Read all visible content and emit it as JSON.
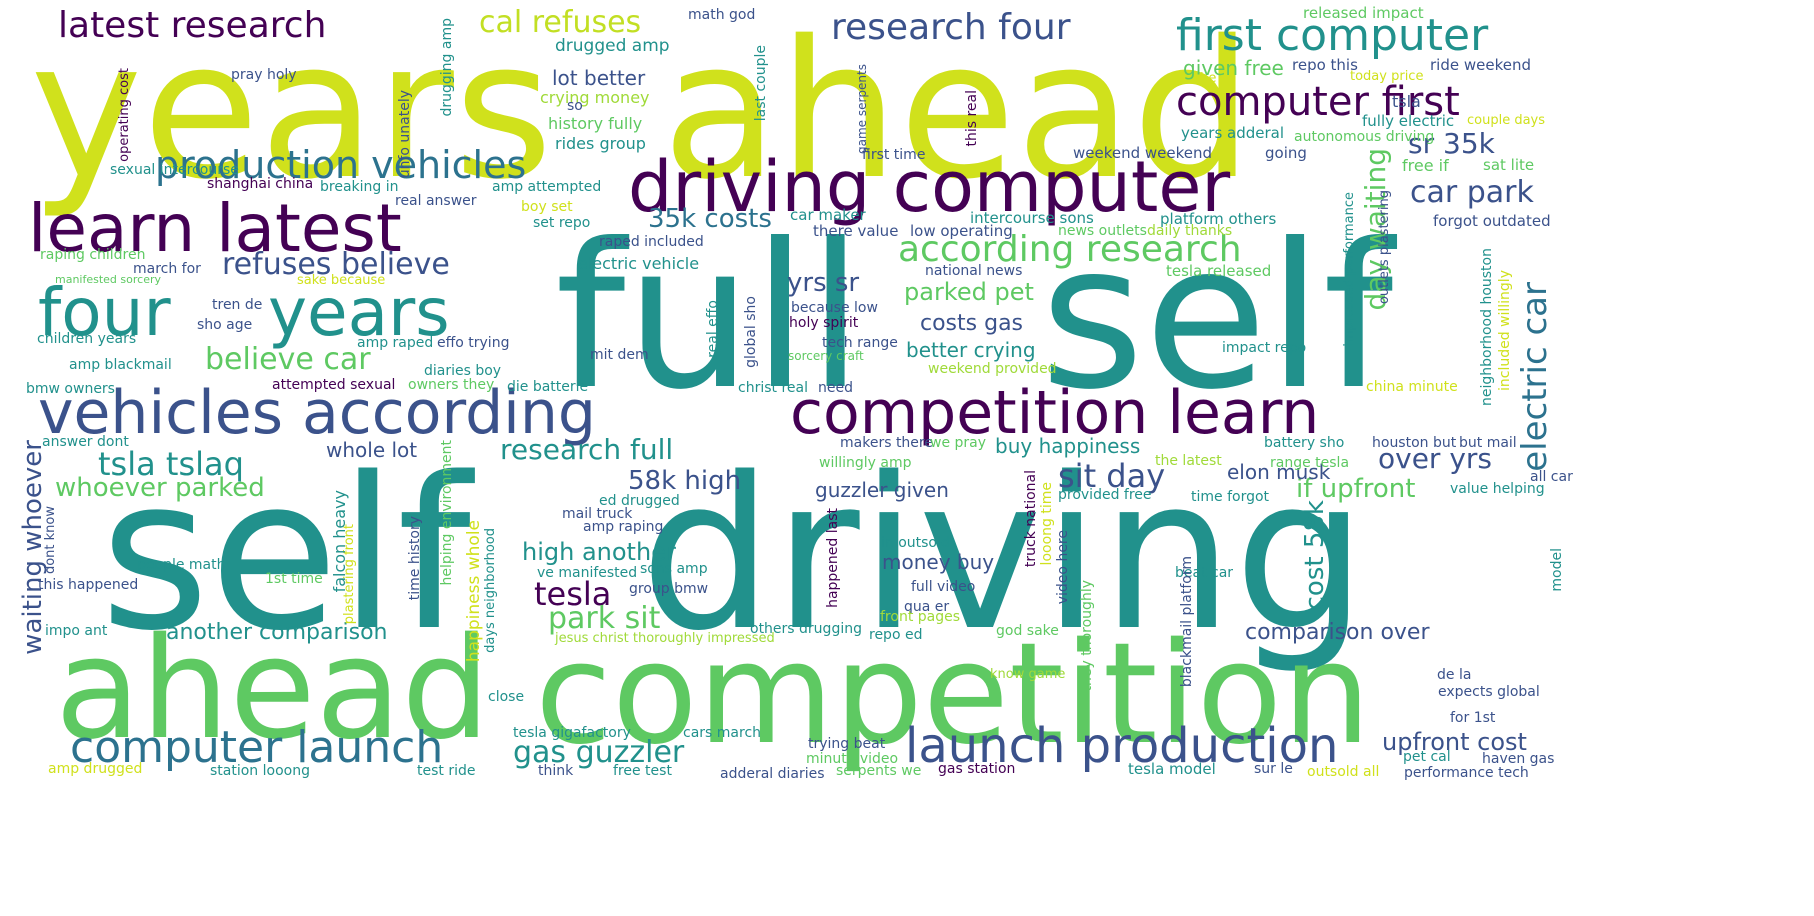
{
  "words": [
    {
      "t": "years",
      "c": "#d0e11c"
    },
    {
      "t": "ahead",
      "c": "#d0e11c"
    },
    {
      "t": "full",
      "c": "#21918c"
    },
    {
      "t": "self",
      "c": "#21918c"
    },
    {
      "t": "self",
      "c": "#21918c"
    },
    {
      "t": "driving",
      "c": "#21918c"
    },
    {
      "t": "ahead",
      "c": "#5ec962"
    },
    {
      "t": "competition",
      "c": "#5ec962"
    },
    {
      "t": "driving computer",
      "c": "#440154"
    },
    {
      "t": "learn latest",
      "c": "#440154"
    },
    {
      "t": "four",
      "c": "#21918c"
    },
    {
      "t": "years",
      "c": "#21918c"
    },
    {
      "t": "vehicles according",
      "c": "#3b528b"
    },
    {
      "t": "competition learn",
      "c": "#440154"
    },
    {
      "t": "latest research",
      "c": "#440154"
    },
    {
      "t": "cal refuses",
      "c": "#c2df23"
    },
    {
      "t": "research four",
      "c": "#3b528b"
    },
    {
      "t": "first computer",
      "c": "#21918c"
    },
    {
      "t": "computer first",
      "c": "#440154"
    },
    {
      "t": "production vehicles",
      "c": "#2c728e"
    },
    {
      "t": "according research",
      "c": "#5ec962"
    },
    {
      "t": "refuses believe",
      "c": "#3b528b"
    },
    {
      "t": "believe car",
      "c": "#5ec962"
    },
    {
      "t": "computer launch",
      "c": "#2c728e"
    },
    {
      "t": "launch production",
      "c": "#3b528b"
    },
    {
      "t": "tsla tslaq",
      "c": "#21918c"
    },
    {
      "t": "whoever parked",
      "c": "#5ec962"
    },
    {
      "t": "research full",
      "c": "#21918c"
    },
    {
      "t": "sit day",
      "c": "#3b528b"
    },
    {
      "t": "over yrs",
      "c": "#3b528b"
    },
    {
      "t": "electric car",
      "c": "#2c728e"
    },
    {
      "t": "car park",
      "c": "#3b528b"
    },
    {
      "t": "sr 35k",
      "c": "#3b528b"
    },
    {
      "t": "day waiting",
      "c": "#5ec962"
    },
    {
      "t": "35k costs",
      "c": "#2c728e"
    },
    {
      "t": "yrs sr",
      "c": "#3b528b"
    },
    {
      "t": "parked pet",
      "c": "#5ec962"
    },
    {
      "t": "costs gas",
      "c": "#3b528b"
    },
    {
      "t": "better crying",
      "c": "#21918c"
    },
    {
      "t": "58k high",
      "c": "#3b528b"
    },
    {
      "t": "guzzler given",
      "c": "#3b528b"
    },
    {
      "t": "high another",
      "c": "#21918c"
    },
    {
      "t": "tesla",
      "c": "#440154"
    },
    {
      "t": "park sit",
      "c": "#5ec962"
    },
    {
      "t": "cost 58k",
      "c": "#21918c"
    },
    {
      "t": "if upfront",
      "c": "#5ec962"
    },
    {
      "t": "elon musk",
      "c": "#3b528b"
    },
    {
      "t": "buy happiness",
      "c": "#21918c"
    },
    {
      "t": "whole lot",
      "c": "#3b528b"
    },
    {
      "t": "waiting whoever",
      "c": "#3b528b"
    },
    {
      "t": "another comparison",
      "c": "#21918c"
    },
    {
      "t": "comparison over",
      "c": "#3b528b"
    },
    {
      "t": "gas guzzler",
      "c": "#21918c"
    },
    {
      "t": "upfront cost",
      "c": "#3b528b"
    },
    {
      "t": "money buy",
      "c": "#3b528b"
    },
    {
      "t": "lot better",
      "c": "#3b528b"
    },
    {
      "t": "drugged amp",
      "c": "#21918c"
    },
    {
      "t": "crying money",
      "c": "#a0da39"
    },
    {
      "t": "history fully",
      "c": "#5ec962"
    },
    {
      "t": "rides group",
      "c": "#21918c"
    },
    {
      "t": "math god",
      "c": "#3b528b"
    },
    {
      "t": "released impact",
      "c": "#5ec962"
    },
    {
      "t": "given free",
      "c": "#5ec962"
    },
    {
      "t": "repo this",
      "c": "#3b528b"
    },
    {
      "t": "ride weekend",
      "c": "#3b528b"
    },
    {
      "t": "the",
      "c": "#d0e11c"
    },
    {
      "t": "today price",
      "c": "#d0e11c"
    },
    {
      "t": "fully electric",
      "c": "#21918c"
    },
    {
      "t": "couple days",
      "c": "#d0e11c"
    },
    {
      "t": "tsla",
      "c": "#3b528b"
    },
    {
      "t": "years adderal",
      "c": "#21918c"
    },
    {
      "t": "autonomous driving",
      "c": "#5ec962"
    },
    {
      "t": "going",
      "c": "#3b528b"
    },
    {
      "t": "free if",
      "c": "#5ec962"
    },
    {
      "t": "sat lite",
      "c": "#5ec962"
    },
    {
      "t": "forgot outdated",
      "c": "#3b528b"
    },
    {
      "t": "platform others",
      "c": "#21918c"
    },
    {
      "t": "intercourse sons",
      "c": "#21918c"
    },
    {
      "t": "weekend weekend",
      "c": "#3b528b"
    },
    {
      "t": "first time",
      "c": "#3b528b"
    },
    {
      "t": "car maker",
      "c": "#21918c"
    },
    {
      "t": "there value",
      "c": "#3b528b"
    },
    {
      "t": "low operating",
      "c": "#3b528b"
    },
    {
      "t": "news outlets",
      "c": "#5ec962"
    },
    {
      "t": "daily thanks",
      "c": "#a0da39"
    },
    {
      "t": "tesla released",
      "c": "#5ec962"
    },
    {
      "t": "national news",
      "c": "#3b528b"
    },
    {
      "t": "because low",
      "c": "#3b528b"
    },
    {
      "t": "holy spirit",
      "c": "#440154"
    },
    {
      "t": "tech range",
      "c": "#3b528b"
    },
    {
      "t": "sorcery craft",
      "c": "#5ec962"
    },
    {
      "t": "weekend provided",
      "c": "#a0da39"
    },
    {
      "t": "impact repo",
      "c": "#21918c"
    },
    {
      "t": "china minute",
      "c": "#d0e11c"
    },
    {
      "t": "christ real",
      "c": "#21918c"
    },
    {
      "t": "need",
      "c": "#3b528b"
    },
    {
      "t": "electric vehicle",
      "c": "#21918c"
    },
    {
      "t": "raped included",
      "c": "#3b528b"
    },
    {
      "t": "pray holy",
      "c": "#3b528b"
    },
    {
      "t": "shanghai china",
      "c": "#440154"
    },
    {
      "t": "breaking in",
      "c": "#21918c"
    },
    {
      "t": "sexual intercourse",
      "c": "#21918c"
    },
    {
      "t": "real answer",
      "c": "#3b528b"
    },
    {
      "t": "amp attempted",
      "c": "#21918c"
    },
    {
      "t": "boy set",
      "c": "#d0e11c"
    },
    {
      "t": "set repo",
      "c": "#21918c"
    },
    {
      "t": "so",
      "c": "#3b528b"
    },
    {
      "t": "raping children",
      "c": "#5ec962"
    },
    {
      "t": "march for",
      "c": "#3b528b"
    },
    {
      "t": "manifested sorcery",
      "c": "#5ec962"
    },
    {
      "t": "sake because",
      "c": "#d0e11c"
    },
    {
      "t": "tren de",
      "c": "#3b528b"
    },
    {
      "t": "sho age",
      "c": "#3b528b"
    },
    {
      "t": "children years",
      "c": "#21918c"
    },
    {
      "t": "amp raped",
      "c": "#21918c"
    },
    {
      "t": "effo trying",
      "c": "#3b528b"
    },
    {
      "t": "amp blackmail",
      "c": "#21918c"
    },
    {
      "t": "mit dem",
      "c": "#3b528b"
    },
    {
      "t": "diaries boy",
      "c": "#21918c"
    },
    {
      "t": "bmw owners",
      "c": "#21918c"
    },
    {
      "t": "attempted sexual",
      "c": "#440154"
    },
    {
      "t": "owners they",
      "c": "#5ec962"
    },
    {
      "t": "die batterie",
      "c": "#21918c"
    },
    {
      "t": "answer dont",
      "c": "#21918c"
    },
    {
      "t": "makers there",
      "c": "#3b528b"
    },
    {
      "t": "we pray",
      "c": "#5ec962"
    },
    {
      "t": "battery sho",
      "c": "#21918c"
    },
    {
      "t": "houston but",
      "c": "#3b528b"
    },
    {
      "t": "but mail",
      "c": "#3b528b"
    },
    {
      "t": "willingly amp",
      "c": "#5ec962"
    },
    {
      "t": "the latest",
      "c": "#a0da39"
    },
    {
      "t": "range tesla",
      "c": "#5ec962"
    },
    {
      "t": "all car",
      "c": "#3b528b"
    },
    {
      "t": "value helping",
      "c": "#21918c"
    },
    {
      "t": "provided free",
      "c": "#21918c"
    },
    {
      "t": "time forgot",
      "c": "#21918c"
    },
    {
      "t": "ed drugged",
      "c": "#21918c"
    },
    {
      "t": "mail truck",
      "c": "#3b528b"
    },
    {
      "t": "amp raping",
      "c": "#3b528b"
    },
    {
      "t": "people math",
      "c": "#21918c"
    },
    {
      "t": "1st time",
      "c": "#5ec962"
    },
    {
      "t": "this happened",
      "c": "#3b528b"
    },
    {
      "t": "impo ant",
      "c": "#21918c"
    },
    {
      "t": "ve manifested",
      "c": "#21918c"
    },
    {
      "t": "sons amp",
      "c": "#21918c"
    },
    {
      "t": "group bmw",
      "c": "#3b528b"
    },
    {
      "t": "in outsold",
      "c": "#21918c"
    },
    {
      "t": "full video",
      "c": "#3b528b"
    },
    {
      "t": "qua er",
      "c": "#3b528b"
    },
    {
      "t": "front pages",
      "c": "#a0da39"
    },
    {
      "t": "repo ed",
      "c": "#21918c"
    },
    {
      "t": "beat car",
      "c": "#21918c"
    },
    {
      "t": "god sake",
      "c": "#5ec962"
    },
    {
      "t": "know game",
      "c": "#a0da39"
    },
    {
      "t": "others drugging",
      "c": "#21918c"
    },
    {
      "t": "jesus christ thoroughly impressed",
      "c": "#a0da39"
    },
    {
      "t": "close",
      "c": "#21918c"
    },
    {
      "t": "tesla gigafactory",
      "c": "#21918c"
    },
    {
      "t": "cars march",
      "c": "#21918c"
    },
    {
      "t": "trying beat",
      "c": "#3b528b"
    },
    {
      "t": "minute video",
      "c": "#5ec962"
    },
    {
      "t": "serpents we",
      "c": "#5ec962"
    },
    {
      "t": "gas station",
      "c": "#440154"
    },
    {
      "t": "tesla model",
      "c": "#21918c"
    },
    {
      "t": "sur le",
      "c": "#3b528b"
    },
    {
      "t": "outsold all",
      "c": "#d0e11c"
    },
    {
      "t": "pet cal",
      "c": "#21918c"
    },
    {
      "t": "haven gas",
      "c": "#3b528b"
    },
    {
      "t": "performance tech",
      "c": "#3b528b"
    },
    {
      "t": "de la",
      "c": "#3b528b"
    },
    {
      "t": "expects global",
      "c": "#3b528b"
    },
    {
      "t": "for 1st",
      "c": "#3b528b"
    },
    {
      "t": "amp drugged",
      "c": "#d0e11c"
    },
    {
      "t": "station looong",
      "c": "#21918c"
    },
    {
      "t": "test ride",
      "c": "#21918c"
    },
    {
      "t": "think",
      "c": "#3b528b"
    },
    {
      "t": "free test",
      "c": "#21918c"
    },
    {
      "t": "adderal diaries",
      "c": "#3b528b"
    },
    {
      "t": "operating cost",
      "c": "#440154"
    },
    {
      "t": "unfo unately",
      "c": "#3b528b"
    },
    {
      "t": "drugging amp",
      "c": "#21918c"
    },
    {
      "t": "last couple",
      "c": "#21918c"
    },
    {
      "t": "game serpents",
      "c": "#3b528b"
    },
    {
      "t": "this real",
      "c": "#440154"
    },
    {
      "t": "impressed performance",
      "c": "#21918c"
    },
    {
      "t": "outlets plastering",
      "c": "#3b528b"
    },
    {
      "t": "neighborhood houston",
      "c": "#21918c"
    },
    {
      "t": "included willingly",
      "c": "#d0e11c"
    },
    {
      "t": "real effo",
      "c": "#21918c"
    },
    {
      "t": "global sho",
      "c": "#3b528b"
    },
    {
      "t": "dont know",
      "c": "#3b528b"
    },
    {
      "t": "plastering front",
      "c": "#d0e11c"
    },
    {
      "t": "falcon heavy",
      "c": "#21918c"
    },
    {
      "t": "time history",
      "c": "#3b528b"
    },
    {
      "t": "helping environment",
      "c": "#5ec962"
    },
    {
      "t": "happiness whole",
      "c": "#d0e11c"
    },
    {
      "t": "days neighborhood",
      "c": "#21918c"
    },
    {
      "t": "happened last",
      "c": "#440154"
    },
    {
      "t": "truck national",
      "c": "#440154"
    },
    {
      "t": "looong time",
      "c": "#d0e11c"
    },
    {
      "t": "video here",
      "c": "#3b528b"
    },
    {
      "t": "they thoroughly",
      "c": "#5ec962"
    },
    {
      "t": "blackmail platform",
      "c": "#3b528b"
    },
    {
      "t": "model",
      "c": "#21918c"
    }
  ]
}
